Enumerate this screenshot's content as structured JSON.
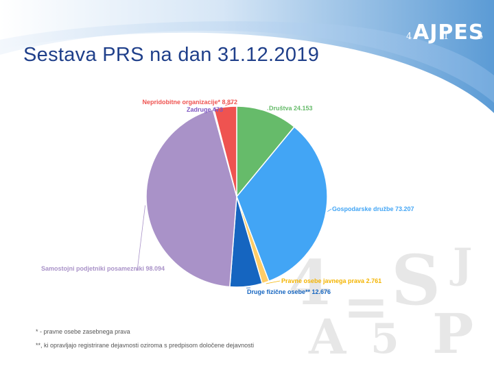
{
  "title": "Sestava PRS na dan 31.12.2019",
  "logo": {
    "text": "AJPES",
    "digits": [
      "4",
      "1",
      "5"
    ]
  },
  "colors": {
    "title": "#1f3f8a",
    "banner": "#5b9bd5",
    "label_text": "#555555"
  },
  "chart_data": {
    "type": "pie",
    "start_angle_deg": 0,
    "direction": "clockwise",
    "slices": [
      {
        "label": "Društva",
        "value_text": "24.153",
        "value": 24153,
        "color": "#66bb6a",
        "label_color": "#66bb6a"
      },
      {
        "label": "Gospodarske družbe",
        "value_text": "73.207",
        "value": 73207,
        "color": "#42a5f5",
        "label_color": "#42a5f5"
      },
      {
        "label": "Pravne osebe javnega prava",
        "value_text": "2.761",
        "value": 2761,
        "color": "#ffcc66",
        "label_color": "#f4b400"
      },
      {
        "label": "Druge fizične osebe**",
        "value_text": "12.676",
        "value": 12676,
        "color": "#1565c0",
        "label_color": "#1565c0"
      },
      {
        "label": "Samostojni podjetniki posamezniki",
        "value_text": "98.094",
        "value": 98094,
        "color": "#a992c8",
        "label_color": "#a992c8"
      },
      {
        "label": "Zadruge",
        "value_text": "473",
        "value": 473,
        "color": "#7e57c2",
        "label_color": "#7e57c2"
      },
      {
        "label": "Nepridobitne organizacije*",
        "value_text": "8.872",
        "value": 8872,
        "color": "#ef5350",
        "label_color": "#ef5350"
      }
    ]
  },
  "notes": [
    "* - pravne osebe zasebnega prava",
    "**, ki opravljajo registrirane dejavnosti oziroma s predpisom določene dejavnosti"
  ]
}
